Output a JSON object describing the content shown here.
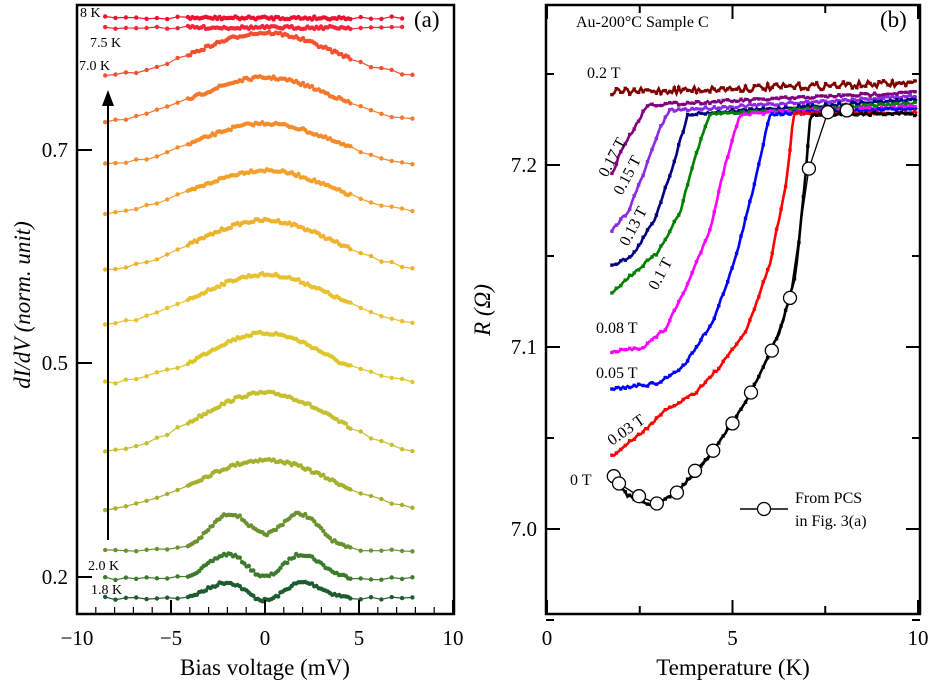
{
  "chart_data": [
    {
      "panel": "(a)",
      "type": "line",
      "xlabel": "Bias voltage (mV)",
      "ylabel": "dI/dV (norm. unit)",
      "xlim": [
        -10,
        10
      ],
      "xticks": [
        "−10",
        "−5",
        "0",
        "5",
        "10"
      ],
      "xtick_values": [
        -10,
        -5,
        0,
        5,
        10
      ],
      "yticks": [
        "0.2",
        "0.5",
        "0.7"
      ],
      "ytick_values": [
        0.2,
        0.5,
        0.7
      ],
      "annotation_arrow": "increasing temperature",
      "series": [
        {
          "label": "1.8 K",
          "color": "#1e5c30",
          "shape": "double-peak",
          "edge": 0.17,
          "peak": 0.196,
          "center": 0.179,
          "vrange": [
            -8.5,
            8.3
          ]
        },
        {
          "label": "2.0 K",
          "color": "#3c7a2c",
          "shape": "double-peak",
          "edge": 0.198,
          "peak": 0.236,
          "center": 0.218,
          "vrange": [
            -8.5,
            8.3
          ]
        },
        {
          "label": "",
          "color": "#6b9230",
          "shape": "double-peak",
          "edge": 0.238,
          "peak": 0.29,
          "center": 0.285,
          "vrange": [
            -8.5,
            8.3
          ]
        },
        {
          "label": "",
          "color": "#a5b02c",
          "shape": "dome",
          "edge": 0.295,
          "center": 0.364,
          "vrange": [
            -8.5,
            8.3
          ]
        },
        {
          "label": "",
          "color": "#c6c030",
          "shape": "dome",
          "edge": 0.375,
          "center": 0.458,
          "vrange": [
            -8.5,
            8.3
          ]
        },
        {
          "label": "",
          "color": "#dcc62c",
          "shape": "dome",
          "edge": 0.472,
          "center": 0.528,
          "vrange": [
            -8.5,
            8.3
          ]
        },
        {
          "label": "",
          "color": "#e8c030",
          "shape": "dome",
          "edge": 0.536,
          "center": 0.583,
          "vrange": [
            -8.5,
            8.3
          ]
        },
        {
          "label": "",
          "color": "#efb22e",
          "shape": "dome",
          "edge": 0.588,
          "center": 0.634,
          "vrange": [
            -8.5,
            8.3
          ]
        },
        {
          "label": "",
          "color": "#f4a02d",
          "shape": "dome",
          "edge": 0.641,
          "center": 0.681,
          "vrange": [
            -8.5,
            8.3
          ]
        },
        {
          "label": "",
          "color": "#f58c2c",
          "shape": "dome",
          "edge": 0.686,
          "center": 0.725,
          "vrange": [
            -8.5,
            8.3
          ]
        },
        {
          "label": "",
          "color": "#f5782c",
          "shape": "dome",
          "edge": 0.727,
          "center": 0.768,
          "vrange": [
            -8.5,
            8.3
          ]
        },
        {
          "label": "7.0 K",
          "color": "#f45030",
          "shape": "dome",
          "edge": 0.769,
          "center": 0.81,
          "vrange": [
            -8.5,
            8.3
          ]
        },
        {
          "label": "7.5 K",
          "color": "#f2283a",
          "shape": "flat",
          "edge": 0.815,
          "center": 0.815,
          "vrange": [
            -8.5,
            7.5
          ]
        },
        {
          "label": "8 K",
          "color": "#f01030",
          "shape": "flat",
          "edge": 0.824,
          "center": 0.824,
          "vrange": [
            -8.5,
            7.5
          ]
        }
      ]
    },
    {
      "panel": "(b)",
      "type": "line",
      "title": "Au-200°C Sample C",
      "xlabel": "Temperature (K)",
      "ylabel": "R (Ω)",
      "xlim": [
        0,
        10
      ],
      "ylim": [
        6.953,
        7.288
      ],
      "xticks": [
        "0",
        "5",
        "10"
      ],
      "xtick_values": [
        0,
        5,
        10
      ],
      "yticks": [
        "7.0",
        "7.1",
        "7.2"
      ],
      "ytick_values": [
        7.0,
        7.1,
        7.2
      ],
      "legend": {
        "label_line1": "From PCS",
        "label_line2": "in Fig. 3(a)",
        "position": "bottom-right"
      },
      "series": [
        {
          "label": "0.2 T",
          "color": "#800000",
          "points": [
            [
              1.75,
              7.24
            ],
            [
              10,
              7.245
            ]
          ]
        },
        {
          "label": "0.17 T",
          "color": "#800080",
          "points": [
            [
              1.75,
              7.195
            ],
            [
              2.0,
              7.208
            ],
            [
              2.4,
              7.222
            ],
            [
              2.7,
              7.233
            ],
            [
              10,
              7.24
            ]
          ]
        },
        {
          "label": "0.15 T",
          "color": "#8a2be2",
          "points": [
            [
              1.75,
              7.164
            ],
            [
              2.2,
              7.175
            ],
            [
              2.6,
              7.195
            ],
            [
              3.0,
              7.218
            ],
            [
              3.3,
              7.23
            ],
            [
              10,
              7.238
            ]
          ]
        },
        {
          "label": "0.13 T",
          "color": "#000080",
          "points": [
            [
              1.75,
              7.145
            ],
            [
              2.3,
              7.15
            ],
            [
              2.9,
              7.17
            ],
            [
              3.4,
              7.2
            ],
            [
              3.8,
              7.228
            ],
            [
              10,
              7.236
            ]
          ]
        },
        {
          "label": "0.1 T",
          "color": "#008000",
          "points": [
            [
              1.75,
              7.13
            ],
            [
              2.3,
              7.14
            ],
            [
              3.0,
              7.152
            ],
            [
              3.6,
              7.175
            ],
            [
              4.0,
              7.205
            ],
            [
              4.4,
              7.228
            ],
            [
              10,
              7.234
            ]
          ]
        },
        {
          "label": "0.08 T",
          "color": "#ff00ff",
          "points": [
            [
              1.75,
              7.097
            ],
            [
              2.6,
              7.1
            ],
            [
              3.2,
              7.11
            ],
            [
              3.8,
              7.135
            ],
            [
              4.4,
              7.165
            ],
            [
              4.8,
              7.2
            ],
            [
              5.2,
              7.228
            ],
            [
              10,
              7.232
            ]
          ]
        },
        {
          "label": "0.05 T",
          "color": "#0000ff",
          "points": [
            [
              1.75,
              7.077
            ],
            [
              3.0,
              7.08
            ],
            [
              3.7,
              7.09
            ],
            [
              4.5,
              7.115
            ],
            [
              5.1,
              7.15
            ],
            [
              5.6,
              7.19
            ],
            [
              6.0,
              7.228
            ],
            [
              10,
              7.231
            ]
          ]
        },
        {
          "label": "0.03 T",
          "color": "#ff0000",
          "points": [
            [
              1.75,
              7.04
            ],
            [
              2.5,
              7.052
            ],
            [
              3.2,
              7.065
            ],
            [
              4.0,
              7.075
            ],
            [
              4.7,
              7.09
            ],
            [
              5.4,
              7.11
            ],
            [
              6.0,
              7.145
            ],
            [
              6.45,
              7.19
            ],
            [
              6.65,
              7.228
            ],
            [
              10,
              7.229
            ]
          ]
        },
        {
          "label": "0 T",
          "color": "#000000",
          "points": [
            [
              1.75,
              7.027
            ],
            [
              2.2,
              7.018
            ],
            [
              2.9,
              7.013
            ],
            [
              3.5,
              7.02
            ],
            [
              4.5,
              7.043
            ],
            [
              5.5,
              7.075
            ],
            [
              6.3,
              7.11
            ],
            [
              6.7,
              7.14
            ],
            [
              6.95,
              7.19
            ],
            [
              7.1,
              7.228
            ],
            [
              10,
              7.228
            ]
          ]
        }
      ],
      "pcs_points": [
        [
          1.8,
          7.029
        ],
        [
          1.94,
          7.025
        ],
        [
          2.48,
          7.018
        ],
        [
          2.96,
          7.014
        ],
        [
          3.5,
          7.02
        ],
        [
          3.99,
          7.032
        ],
        [
          4.48,
          7.043
        ],
        [
          5.0,
          7.058
        ],
        [
          5.5,
          7.075
        ],
        [
          6.06,
          7.098
        ],
        [
          6.55,
          7.127
        ],
        [
          7.06,
          7.198
        ],
        [
          7.57,
          7.229
        ],
        [
          8.08,
          7.23
        ]
      ]
    }
  ]
}
